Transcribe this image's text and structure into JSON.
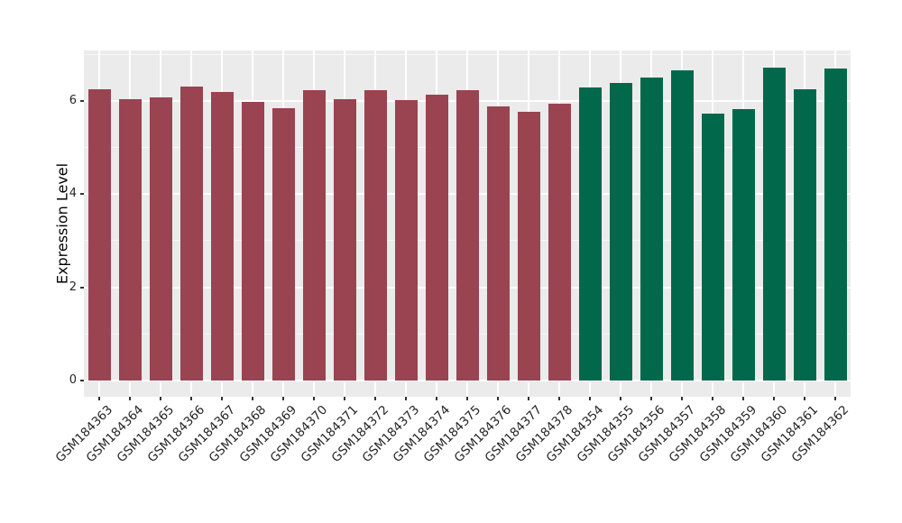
{
  "figure": {
    "background": "#ffffff"
  },
  "chart_data": {
    "type": "bar",
    "title": "",
    "xlabel": "",
    "ylabel": "Expression Level",
    "categories": [
      "GSM184363",
      "GSM184364",
      "GSM184365",
      "GSM184366",
      "GSM184367",
      "GSM184368",
      "GSM184369",
      "GSM184370",
      "GSM184371",
      "GSM184372",
      "GSM184373",
      "GSM184374",
      "GSM184375",
      "GSM184376",
      "GSM184377",
      "GSM184378",
      "GSM184354",
      "GSM184355",
      "GSM184356",
      "GSM184357",
      "GSM184358",
      "GSM184359",
      "GSM184360",
      "GSM184361",
      "GSM184362"
    ],
    "values": [
      6.24,
      6.03,
      6.08,
      6.3,
      6.19,
      5.98,
      5.85,
      6.23,
      6.03,
      6.22,
      6.02,
      6.14,
      6.22,
      5.89,
      5.76,
      5.93,
      6.28,
      6.38,
      6.5,
      6.65,
      5.72,
      5.82,
      6.72,
      6.25,
      6.7
    ],
    "groups": [
      0,
      0,
      0,
      0,
      0,
      0,
      0,
      0,
      0,
      0,
      0,
      0,
      0,
      0,
      0,
      0,
      1,
      1,
      1,
      1,
      1,
      1,
      1,
      1,
      1
    ],
    "group_colors": [
      "#9A4351",
      "#02684C"
    ],
    "yticks": [
      0,
      2,
      4,
      6
    ],
    "yticks_minor": [
      1,
      3,
      5,
      7
    ],
    "ylim": [
      -0.35,
      7.08
    ],
    "panel_bg": "#EBEBEB",
    "grid_color": "#FFFFFF",
    "tick_color": "#333333",
    "text_color": "#262626",
    "legend": "none",
    "grid": true,
    "x_label_rotation_deg": 45
  }
}
